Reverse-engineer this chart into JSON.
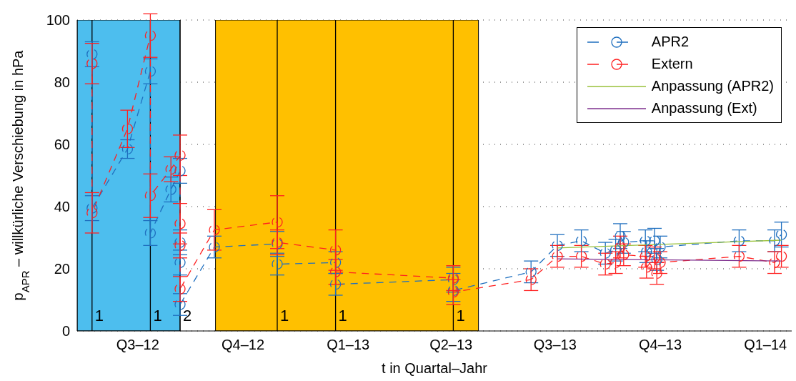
{
  "chart_data": {
    "type": "line",
    "xlabel": "t in Quartal–Jahr",
    "ylabel": "p$_{APR}$ – willkürliche Verschiebung in hPa",
    "xlim": [
      "2012-05-09",
      "2014-01-24"
    ],
    "xticks": [
      {
        "value": "2012-07-01",
        "label": "Q3–12"
      },
      {
        "value": "2012-10-01",
        "label": "Q4–12"
      },
      {
        "value": "2013-01-01",
        "label": "Q1–13"
      },
      {
        "value": "2013-04-01",
        "label": "Q2–13"
      },
      {
        "value": "2013-07-01",
        "label": "Q3–13"
      },
      {
        "value": "2013-10-01",
        "label": "Q4–13"
      },
      {
        "value": "2014-01-01",
        "label": "Q1–14"
      }
    ],
    "ylim": [
      0,
      100
    ],
    "yticks": [
      0,
      20,
      40,
      60,
      80,
      100
    ],
    "grid": "y",
    "legend": "top right",
    "bands": [
      {
        "axis": "x",
        "from": "2012-05-09",
        "to": "2012-08-07",
        "color": "#4dbeee"
      },
      {
        "axis": "x",
        "from": "2012-09-07",
        "to": "2013-04-25",
        "color": "#ffc000"
      }
    ],
    "ref_lines": [
      {
        "axis": "x",
        "value": "2012-05-22",
        "color": "#000000"
      },
      {
        "axis": "x",
        "value": "2012-07-12",
        "color": "#000000"
      },
      {
        "axis": "x",
        "value": "2012-08-07",
        "color": "#000000"
      },
      {
        "axis": "x",
        "value": "2012-10-31",
        "color": "#000000"
      },
      {
        "axis": "x",
        "value": "2012-12-21",
        "color": "#000000"
      },
      {
        "axis": "x",
        "value": "2013-04-03",
        "color": "#000000"
      }
    ],
    "annotations": [
      {
        "text": "1",
        "x": "2012-05-22",
        "y": 5
      },
      {
        "text": "1",
        "x": "2012-07-12",
        "y": 5
      },
      {
        "text": "2",
        "x": "2012-08-07",
        "y": 5
      },
      {
        "text": "1",
        "x": "2012-10-31",
        "y": 5
      },
      {
        "text": "1",
        "x": "2012-12-21",
        "y": 5
      },
      {
        "text": "1",
        "x": "2013-04-03",
        "y": 5
      }
    ],
    "series": [
      {
        "name": "APR2",
        "color": "#1f6fbf",
        "marker": "circle",
        "line_style": "dashed",
        "x": [
          "2012-05-22",
          "2012-05-22",
          "2012-06-22",
          "2012-07-12",
          "2012-07-12",
          "2012-07-30",
          "2012-08-07",
          "2012-08-07",
          "2012-08-07",
          "2012-08-07",
          "2012-09-06",
          "2012-10-31",
          "2012-10-31",
          "2012-12-21",
          "2012-12-21",
          "2013-04-03",
          "2013-04-03",
          "2013-06-10",
          "2013-07-03",
          "2013-07-24",
          "2013-08-14",
          "2013-08-23",
          "2013-08-27",
          "2013-08-30",
          "2013-09-18",
          "2013-09-19",
          "2013-09-26",
          "2013-09-28",
          "2013-10-01",
          "2013-12-09",
          "2014-01-09",
          "2014-01-15"
        ],
        "values": [
          89,
          39.5,
          58.5,
          83.5,
          31.5,
          45.5,
          51.5,
          28.5,
          22,
          8.5,
          27,
          28,
          21.5,
          22,
          15,
          16.5,
          13,
          19,
          27.5,
          29,
          25,
          26,
          30.5,
          28.5,
          29,
          25.5,
          29,
          23,
          27,
          29,
          29,
          31
        ],
        "errors": [
          4,
          4,
          3,
          4,
          4,
          4,
          4,
          4,
          4,
          3.5,
          3.5,
          4,
          3.5,
          3.5,
          3.5,
          4,
          [
            9.5,
            18.5
          ],
          3.5,
          3.5,
          3.5,
          3.5,
          3.5,
          4,
          3.5,
          3.5,
          3.5,
          4,
          3.5,
          3.5,
          3.5,
          3.5,
          4
        ]
      },
      {
        "name": "Extern",
        "color": "#ff2020",
        "marker": "circle",
        "line_style": "dashed",
        "x": [
          "2012-05-22",
          "2012-05-22",
          "2012-06-22",
          "2012-07-12",
          "2012-07-12",
          "2012-07-30",
          "2012-08-07",
          "2012-08-07",
          "2012-08-07",
          "2012-08-07",
          "2012-09-06",
          "2012-10-31",
          "2012-10-31",
          "2012-12-21",
          "2012-12-21",
          "2013-04-03",
          "2013-04-03",
          "2013-06-10",
          "2013-07-03",
          "2013-07-24",
          "2013-08-14",
          "2013-08-23",
          "2013-08-27",
          "2013-08-30",
          "2013-09-18",
          "2013-09-19",
          "2013-09-26",
          "2013-09-28",
          "2013-10-01",
          "2013-12-09",
          "2014-01-09",
          "2014-01-15"
        ],
        "values": [
          86,
          38,
          65,
          95,
          43.5,
          52,
          56.5,
          34.5,
          27.5,
          13.5,
          32.5,
          35,
          28.5,
          26,
          19,
          17,
          12.5,
          16.5,
          24,
          24,
          21.5,
          22,
          27,
          24.5,
          24,
          20.5,
          23.5,
          18.5,
          22,
          24,
          22,
          24
        ],
        "errors": [
          6.5,
          6.5,
          6,
          7,
          7,
          4,
          6.5,
          6.5,
          4,
          4,
          6.5,
          8.5,
          4,
          6.5,
          4,
          4,
          4,
          3.5,
          3.5,
          3.5,
          3.5,
          3.5,
          3.5,
          3.5,
          3.5,
          3.5,
          3.5,
          3.5,
          3.5,
          3.5,
          3.5,
          3.5
        ]
      },
      {
        "name": "Anpassung (APR2)",
        "color": "#99c13a",
        "type": "line",
        "marker": "none",
        "line_style": "solid",
        "x": [
          "2013-07-03",
          "2014-01-15"
        ],
        "values": [
          26.7,
          29.2
        ]
      },
      {
        "name": "Anpassung (Ext)",
        "color": "#7e2f8e",
        "type": "line",
        "marker": "none",
        "line_style": "solid",
        "x": [
          "2013-07-03",
          "2014-01-15"
        ],
        "values": [
          23.2,
          22.5
        ]
      }
    ]
  }
}
